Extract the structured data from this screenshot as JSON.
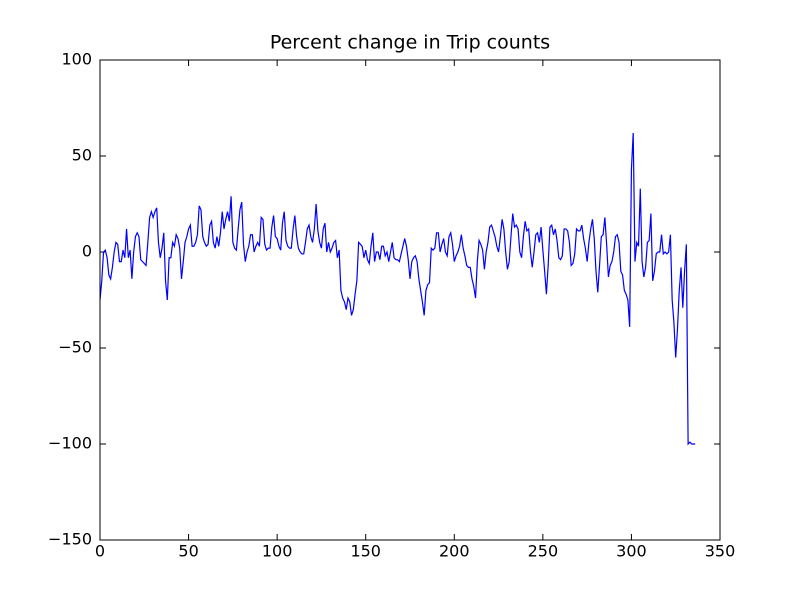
{
  "chart_data": {
    "type": "line",
    "title": "Percent change in Trip counts",
    "color": "#0000ff",
    "grid": false,
    "xlim": [
      0,
      350
    ],
    "xticks": [
      0,
      50,
      100,
      150,
      200,
      250,
      300,
      350
    ],
    "ylim": [
      -150,
      100
    ],
    "yticks": [
      {
        "value": -150,
        "label": "−150"
      },
      {
        "value": -100,
        "label": "−100"
      },
      {
        "value": -50,
        "label": "−50"
      },
      0,
      50,
      100
    ],
    "x": [
      0,
      1,
      2,
      3,
      4,
      5,
      6,
      7,
      8,
      9,
      10,
      11,
      12,
      13,
      14,
      15,
      16,
      17,
      18,
      19,
      20,
      21,
      22,
      23,
      24,
      25,
      26,
      27,
      28,
      29,
      30,
      31,
      32,
      33,
      34,
      35,
      36,
      37,
      38,
      39,
      40,
      41,
      42,
      43,
      44,
      45,
      46,
      47,
      48,
      49,
      50,
      51,
      52,
      53,
      54,
      55,
      56,
      57,
      58,
      59,
      60,
      61,
      62,
      63,
      64,
      65,
      66,
      67,
      68,
      69,
      70,
      71,
      72,
      73,
      74,
      75,
      76,
      77,
      78,
      79,
      80,
      81,
      82,
      83,
      84,
      85,
      86,
      87,
      88,
      89,
      90,
      91,
      92,
      93,
      94,
      95,
      96,
      97,
      98,
      99,
      100,
      101,
      102,
      103,
      104,
      105,
      106,
      107,
      108,
      109,
      110,
      111,
      112,
      113,
      114,
      115,
      116,
      117,
      118,
      119,
      120,
      121,
      122,
      123,
      124,
      125,
      126,
      127,
      128,
      129,
      130,
      131,
      132,
      133,
      134,
      135,
      136,
      137,
      138,
      139,
      140,
      141,
      142,
      143,
      144,
      145,
      146,
      147,
      148,
      149,
      150,
      151,
      152,
      153,
      154,
      155,
      156,
      157,
      158,
      159,
      160,
      161,
      162,
      163,
      164,
      165,
      166,
      167,
      168,
      169,
      170,
      171,
      172,
      173,
      174,
      175,
      176,
      177,
      178,
      179,
      180,
      181,
      182,
      183,
      184,
      185,
      186,
      187,
      188,
      189,
      190,
      191,
      192,
      193,
      194,
      195,
      196,
      197,
      198,
      199,
      200,
      201,
      202,
      203,
      204,
      205,
      206,
      207,
      208,
      209,
      210,
      211,
      212,
      213,
      214,
      215,
      216,
      217,
      218,
      219,
      220,
      221,
      222,
      223,
      224,
      225,
      226,
      227,
      228,
      229,
      230,
      231,
      232,
      233,
      234,
      235,
      236,
      237,
      238,
      239,
      240,
      241,
      242,
      243,
      244,
      245,
      246,
      247,
      248,
      249,
      250,
      251,
      252,
      253,
      254,
      255,
      256,
      257,
      258,
      259,
      260,
      261,
      262,
      263,
      264,
      265,
      266,
      267,
      268,
      269,
      270,
      271,
      272,
      273,
      274,
      275,
      276,
      277,
      278,
      279,
      280,
      281,
      282,
      283,
      284,
      285,
      286,
      287,
      288,
      289,
      290,
      291,
      292,
      293,
      294,
      295,
      296,
      297,
      298,
      299,
      300,
      301,
      302,
      303,
      304,
      305,
      306,
      307,
      308,
      309,
      310,
      311,
      312,
      313,
      314,
      315,
      316,
      317,
      318,
      319,
      320,
      321,
      322,
      323,
      324,
      325,
      326,
      327,
      328,
      329,
      330,
      331,
      332,
      333,
      334,
      335,
      336
    ],
    "values": [
      -25,
      -15,
      0,
      1,
      -3,
      -12,
      -14,
      -8,
      0,
      5,
      4,
      -5,
      -5,
      1,
      -3,
      12,
      -3,
      1,
      -14,
      0,
      8,
      10,
      8,
      -4,
      -5,
      -6,
      -7,
      5,
      18,
      21,
      18,
      21,
      23,
      5,
      -3,
      2,
      10,
      -15,
      -25,
      -3,
      -3,
      5,
      3,
      9,
      7,
      2,
      -14,
      -5,
      5,
      8,
      12,
      14,
      3,
      3,
      5,
      9,
      24,
      22,
      8,
      5,
      3,
      4,
      14,
      16,
      5,
      2,
      8,
      3,
      10,
      21,
      12,
      17,
      21,
      16,
      29,
      5,
      2,
      1,
      12,
      22,
      26,
      4,
      -5,
      0,
      3,
      9,
      9,
      0,
      3,
      5,
      3,
      18,
      17,
      4,
      1,
      2,
      2,
      13,
      19,
      8,
      7,
      3,
      1,
      15,
      21,
      6,
      3,
      2,
      2,
      12,
      19,
      8,
      2,
      0,
      -1,
      -1,
      5,
      12,
      14,
      8,
      5,
      12,
      25,
      11,
      5,
      2,
      12,
      15,
      0,
      5,
      0,
      2,
      5,
      6,
      -3,
      1,
      -20,
      -24,
      -26,
      -30,
      -24,
      -26,
      -33,
      -30,
      -22,
      -15,
      5,
      4,
      3,
      -3,
      1,
      -4,
      -6,
      3,
      10,
      -5,
      0,
      0,
      -4,
      3,
      3,
      -2,
      0,
      -5,
      0,
      5,
      -3,
      -4,
      -4,
      -5,
      -1,
      3,
      7,
      3,
      -4,
      -14,
      -5,
      -3,
      -2,
      -5,
      -14,
      -20,
      -26,
      -33,
      -20,
      -17,
      -16,
      2,
      1,
      2,
      10,
      10,
      0,
      4,
      7,
      0,
      -2,
      8,
      10,
      4,
      -5,
      -2,
      0,
      3,
      9,
      2,
      -2,
      -7,
      -8,
      -8,
      -14,
      -18,
      -24,
      -5,
      6,
      4,
      1,
      -9,
      0,
      5,
      13,
      14,
      11,
      8,
      3,
      0,
      8,
      17,
      12,
      0,
      -9,
      -5,
      8,
      20,
      13,
      14,
      12,
      0,
      -3,
      8,
      16,
      11,
      12,
      0,
      -8,
      0,
      9,
      10,
      5,
      13,
      1,
      -10,
      -22,
      -7,
      13,
      14,
      9,
      12,
      6,
      -3,
      -4,
      -2,
      12,
      12,
      11,
      5,
      -7,
      -6,
      -1,
      12,
      11,
      11,
      14,
      7,
      2,
      -5,
      5,
      12,
      17,
      7,
      -10,
      -21,
      -7,
      8,
      9,
      18,
      4,
      -13,
      -7,
      -5,
      0,
      8,
      9,
      5,
      -10,
      -12,
      -20,
      -22,
      -25,
      -39,
      43,
      62,
      -5,
      5,
      3,
      33,
      -5,
      -13,
      -8,
      5,
      6,
      20,
      -15,
      -10,
      -1,
      0,
      0,
      9,
      -1,
      0,
      -1,
      0,
      9,
      -25,
      -37,
      -55,
      -40,
      -20,
      -8,
      -29,
      -10,
      4,
      -100,
      -99,
      -100,
      -100,
      -100
    ]
  }
}
